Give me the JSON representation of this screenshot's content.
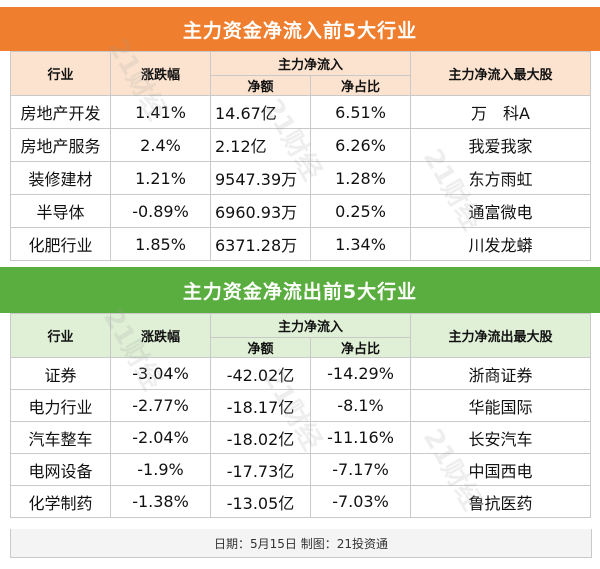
{
  "inflow": {
    "title": "主力资金净流入前5大行业",
    "headers": {
      "industry": "行业",
      "change": "涨跌幅",
      "net_group": "主力净流入",
      "amount": "净额",
      "ratio": "净占比",
      "top_stock": "主力净流入最大股"
    },
    "rows": [
      {
        "industry": "房地产开发",
        "change": "1.41%",
        "amount": "14.67亿",
        "ratio": "6.51%",
        "stock": "万　科A"
      },
      {
        "industry": "房地产服务",
        "change": "2.4%",
        "amount": "2.12亿",
        "ratio": "6.26%",
        "stock": "我爱我家"
      },
      {
        "industry": "装修建材",
        "change": "1.21%",
        "amount": "9547.39万",
        "ratio": "1.28%",
        "stock": "东方雨虹"
      },
      {
        "industry": "半导体",
        "change": "-0.89%",
        "amount": "6960.93万",
        "ratio": "0.25%",
        "stock": "通富微电"
      },
      {
        "industry": "化肥行业",
        "change": "1.85%",
        "amount": "6371.28万",
        "ratio": "1.34%",
        "stock": "川发龙蟒"
      }
    ]
  },
  "outflow": {
    "title": "主力资金净流出前5大行业",
    "headers": {
      "industry": "行业",
      "change": "涨跌幅",
      "net_group": "主力净流入",
      "amount": "净额",
      "ratio": "净占比",
      "top_stock": "主力净流出最大股"
    },
    "rows": [
      {
        "industry": "证券",
        "change": "-3.04%",
        "amount": "-42.02亿",
        "ratio": "-14.29%",
        "stock": "浙商证券"
      },
      {
        "industry": "电力行业",
        "change": "-2.77%",
        "amount": "-18.17亿",
        "ratio": "-8.1%",
        "stock": "华能国际"
      },
      {
        "industry": "汽车整车",
        "change": "-2.04%",
        "amount": "-18.02亿",
        "ratio": "-11.16%",
        "stock": "长安汽车"
      },
      {
        "industry": "电网设备",
        "change": "-1.9%",
        "amount": "-17.73亿",
        "ratio": "-7.17%",
        "stock": "中国西电"
      },
      {
        "industry": "化学制药",
        "change": "-1.38%",
        "amount": "-13.05亿",
        "ratio": "-7.03%",
        "stock": "鲁抗医药"
      }
    ]
  },
  "footer": "日期：5月15日 制图：21投资通",
  "watermark": "21财经",
  "colors": {
    "inflow_title": "#ef7e2e",
    "outflow_title": "#5aae3f",
    "inflow_header": "#fbe3cf",
    "outflow_header": "#dff0d6"
  },
  "chart_data": [
    {
      "type": "table",
      "title": "主力资金净流入前5大行业",
      "columns": [
        "行业",
        "涨跌幅",
        "净额",
        "净占比",
        "主力净流入最大股"
      ],
      "rows": [
        [
          "房地产开发",
          "1.41%",
          "14.67亿",
          "6.51%",
          "万　科A"
        ],
        [
          "房地产服务",
          "2.4%",
          "2.12亿",
          "6.26%",
          "我爱我家"
        ],
        [
          "装修建材",
          "1.21%",
          "9547.39万",
          "1.28%",
          "东方雨虹"
        ],
        [
          "半导体",
          "-0.89%",
          "6960.93万",
          "0.25%",
          "通富微电"
        ],
        [
          "化肥行业",
          "1.85%",
          "6371.28万",
          "1.34%",
          "川发龙蟒"
        ]
      ]
    },
    {
      "type": "table",
      "title": "主力资金净流出前5大行业",
      "columns": [
        "行业",
        "涨跌幅",
        "净额",
        "净占比",
        "主力净流出最大股"
      ],
      "rows": [
        [
          "证券",
          "-3.04%",
          "-42.02亿",
          "-14.29%",
          "浙商证券"
        ],
        [
          "电力行业",
          "-2.77%",
          "-18.17亿",
          "-8.1%",
          "华能国际"
        ],
        [
          "汽车整车",
          "-2.04%",
          "-18.02亿",
          "-11.16%",
          "长安汽车"
        ],
        [
          "电网设备",
          "-1.9%",
          "-17.73亿",
          "-7.17%",
          "中国西电"
        ],
        [
          "化学制药",
          "-1.38%",
          "-13.05亿",
          "-7.03%",
          "鲁抗医药"
        ]
      ]
    }
  ]
}
